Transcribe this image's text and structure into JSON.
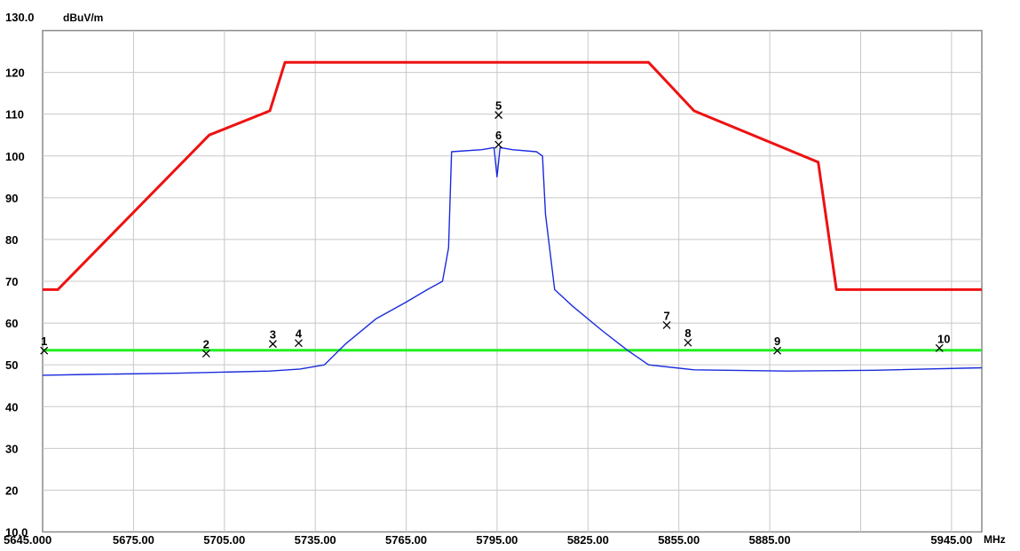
{
  "chart_data": {
    "type": "line",
    "top_label": "130.0",
    "unit_y": "dBuV/m",
    "unit_x": "MHz",
    "xlim": [
      5645,
      5955
    ],
    "ylim": [
      10,
      130
    ],
    "grid": true,
    "x_ticks": [
      {
        "value": 5645,
        "label": "5645.000"
      },
      {
        "value": 5675,
        "label": "5675.00"
      },
      {
        "value": 5705,
        "label": "5705.00"
      },
      {
        "value": 5735,
        "label": "5735.00"
      },
      {
        "value": 5765,
        "label": "5765.00"
      },
      {
        "value": 5795,
        "label": "5795.00"
      },
      {
        "value": 5825,
        "label": "5825.00"
      },
      {
        "value": 5855,
        "label": "5855.00"
      },
      {
        "value": 5885,
        "label": "5885.00"
      },
      {
        "value": 5915,
        "label": ""
      },
      {
        "value": 5945,
        "label": "5945.00"
      }
    ],
    "y_ticks": [
      {
        "value": 10,
        "label": "10.0"
      },
      {
        "value": 20,
        "label": "20"
      },
      {
        "value": 30,
        "label": "30"
      },
      {
        "value": 40,
        "label": "40"
      },
      {
        "value": 50,
        "label": "50"
      },
      {
        "value": 60,
        "label": "60"
      },
      {
        "value": 70,
        "label": "70"
      },
      {
        "value": 80,
        "label": "80"
      },
      {
        "value": 90,
        "label": "90"
      },
      {
        "value": 100,
        "label": "100"
      },
      {
        "value": 110,
        "label": "110"
      },
      {
        "value": 120,
        "label": "120"
      }
    ],
    "series": [
      {
        "color": "#ee1111",
        "x": [
          5645,
          5650,
          5700,
          5720,
          5725,
          5770,
          5820,
          5845,
          5860,
          5901,
          5907,
          5955
        ],
        "y": [
          68,
          68,
          105,
          110.8,
          122.4,
          122.4,
          122.4,
          122.4,
          110.8,
          98.5,
          68,
          68
        ]
      },
      {
        "color": "#22ee22",
        "x": [
          5645,
          5955
        ],
        "y": [
          53.5,
          53.5
        ]
      },
      {
        "color": "#1a2bdd",
        "x": [
          5645,
          5660,
          5690,
          5720,
          5730,
          5738,
          5745,
          5755,
          5765,
          5772,
          5777,
          5779,
          5780,
          5790,
          5794,
          5795,
          5796,
          5800,
          5808,
          5810,
          5811,
          5814,
          5820,
          5830,
          5838,
          5845,
          5860,
          5890,
          5920,
          5955
        ],
        "y": [
          47.5,
          47.7,
          48.0,
          48.5,
          49.0,
          50.0,
          55.0,
          61.0,
          65.0,
          68.0,
          70.0,
          78.0,
          101.0,
          101.5,
          102.0,
          95.0,
          102.0,
          101.5,
          101.0,
          100.0,
          86.0,
          68.0,
          64.0,
          58.0,
          53.5,
          50.0,
          48.8,
          48.5,
          48.7,
          49.3
        ]
      }
    ],
    "markers": [
      {
        "label": "1",
        "x": 5645.5,
        "y": 53.4
      },
      {
        "label": "2",
        "x": 5699,
        "y": 52.7
      },
      {
        "label": "3",
        "x": 5721,
        "y": 55.0
      },
      {
        "label": "4",
        "x": 5729.5,
        "y": 55.2
      },
      {
        "label": "5",
        "x": 5795.5,
        "y": 109.8
      },
      {
        "label": "6",
        "x": 5795.5,
        "y": 102.7
      },
      {
        "label": "7",
        "x": 5851,
        "y": 59.5
      },
      {
        "label": "8",
        "x": 5858,
        "y": 55.3
      },
      {
        "label": "9",
        "x": 5887.5,
        "y": 53.4
      },
      {
        "label": "10",
        "x": 5941,
        "y": 54.0
      }
    ]
  }
}
